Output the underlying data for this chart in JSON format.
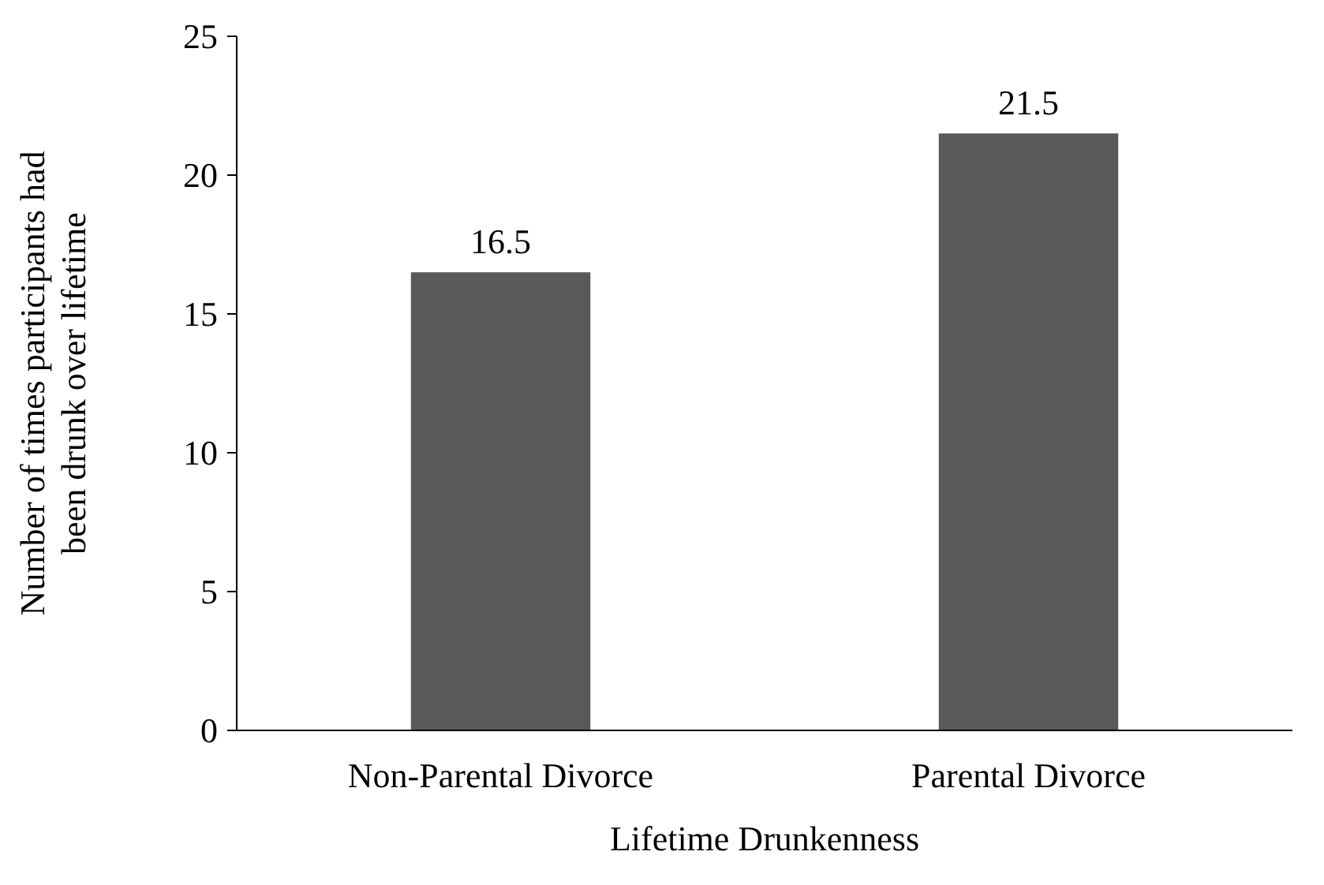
{
  "chart_data": {
    "type": "bar",
    "xlabel": "Lifetime Drunkenness",
    "ylabel": "Number of times participants had been drunk over lifetime",
    "categories": [
      "Non-Parental Divorce",
      "Parental Divorce"
    ],
    "values": [
      16.5,
      21.5
    ],
    "color": "#595959",
    "data_labels": true,
    "ylim": [
      0,
      25
    ],
    "yticks": [
      0,
      5,
      10,
      15,
      20,
      25
    ],
    "grid": false
  }
}
